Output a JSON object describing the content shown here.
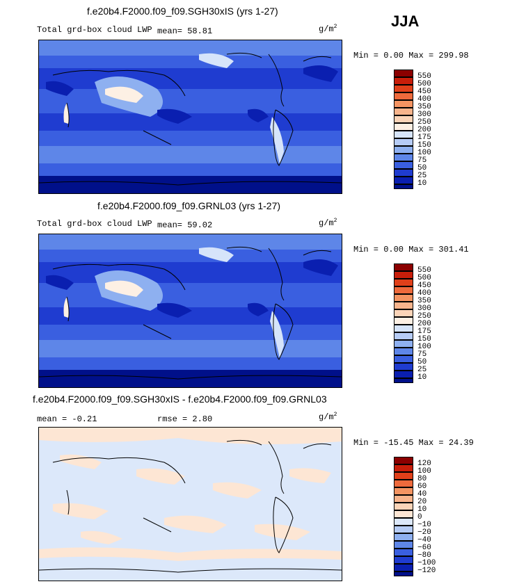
{
  "season": "JJA",
  "units_main": "g/m",
  "units_sup": "2",
  "panels": [
    {
      "title": "f.e20b4.F2000.f09_f09.SGH30xIS (yrs 1-27)",
      "field": "Total grd-box cloud LWP",
      "stat": "mean=  58.81",
      "minmax": "Min =   0.00 Max = 299.98",
      "levels": [
        "550",
        "500",
        "450",
        "400",
        "350",
        "300",
        "250",
        "200",
        "175",
        "150",
        "100",
        "75",
        "50",
        "25",
        "10"
      ],
      "colors": [
        "#8b0000",
        "#c81e0a",
        "#e0401a",
        "#ee6a3c",
        "#f49462",
        "#f8b48c",
        "#fbd4b8",
        "#fdf0e4",
        "#d6e4fa",
        "#b6ccf6",
        "#8eb0f0",
        "#5e86e8",
        "#3a5fe0",
        "#1f3cd0",
        "#0a1fb0",
        "#00108a"
      ],
      "style": "lwp"
    },
    {
      "title": "f.e20b4.F2000.f09_f09.GRNL03 (yrs 1-27)",
      "field": "Total grd-box cloud LWP",
      "stat": "mean=  59.02",
      "minmax": "Min =   0.00 Max = 301.41",
      "levels": [
        "550",
        "500",
        "450",
        "400",
        "350",
        "300",
        "250",
        "200",
        "175",
        "150",
        "100",
        "75",
        "50",
        "25",
        "10"
      ],
      "colors": [
        "#8b0000",
        "#c81e0a",
        "#e0401a",
        "#ee6a3c",
        "#f49462",
        "#f8b48c",
        "#fbd4b8",
        "#fdf0e4",
        "#d6e4fa",
        "#b6ccf6",
        "#8eb0f0",
        "#5e86e8",
        "#3a5fe0",
        "#1f3cd0",
        "#0a1fb0",
        "#00108a"
      ],
      "style": "lwp"
    },
    {
      "title": "f.e20b4.F2000.f09_f09.SGH30xIS - f.e20b4.F2000.f09_f09.GRNL03",
      "field": "mean =  -0.21",
      "stat": "rmse =   2.80",
      "minmax": "Min = -15.45 Max =  24.39",
      "levels": [
        "120",
        "100",
        "80",
        "60",
        "40",
        "20",
        "10",
        "0",
        "−10",
        "−20",
        "−40",
        "−60",
        "−80",
        "−100",
        "−120"
      ],
      "colors": [
        "#8b0000",
        "#c81e0a",
        "#e0401a",
        "#ee6a3c",
        "#f49462",
        "#f8b48c",
        "#fbd4b8",
        "#fde6d4",
        "#dce8fa",
        "#b6ccf6",
        "#8eb0f0",
        "#5e86e8",
        "#3a5fe0",
        "#1f3cd0",
        "#0a1fb0",
        "#00108a"
      ],
      "style": "diff"
    }
  ],
  "chart_data": [
    {
      "type": "heatmap",
      "title": "f.e20b4.F2000.f09_f09.SGH30xIS (yrs 1-27)",
      "mean": 58.81,
      "min": 0.0,
      "max": 299.98,
      "colorbar_levels": [
        10,
        25,
        50,
        75,
        100,
        150,
        175,
        200,
        250,
        300,
        350,
        400,
        450,
        500,
        550
      ]
    },
    {
      "type": "heatmap",
      "title": "f.e20b4.F2000.f09_f09.GRNL03 (yrs 1-27)",
      "mean": 59.02,
      "min": 0.0,
      "max": 301.41,
      "colorbar_levels": [
        10,
        25,
        50,
        75,
        100,
        150,
        175,
        200,
        250,
        300,
        350,
        400,
        450,
        500,
        550
      ]
    },
    {
      "type": "heatmap",
      "title": "f.e20b4.F2000.f09_f09.SGH30xIS - f.e20b4.F2000.f09_f09.GRNL03",
      "mean": -0.21,
      "rmse": 2.8,
      "min": -15.45,
      "max": 24.39,
      "colorbar_levels": [
        -120,
        -100,
        -80,
        -60,
        -40,
        -20,
        -10,
        0,
        10,
        20,
        40,
        60,
        80,
        100,
        120
      ]
    }
  ]
}
